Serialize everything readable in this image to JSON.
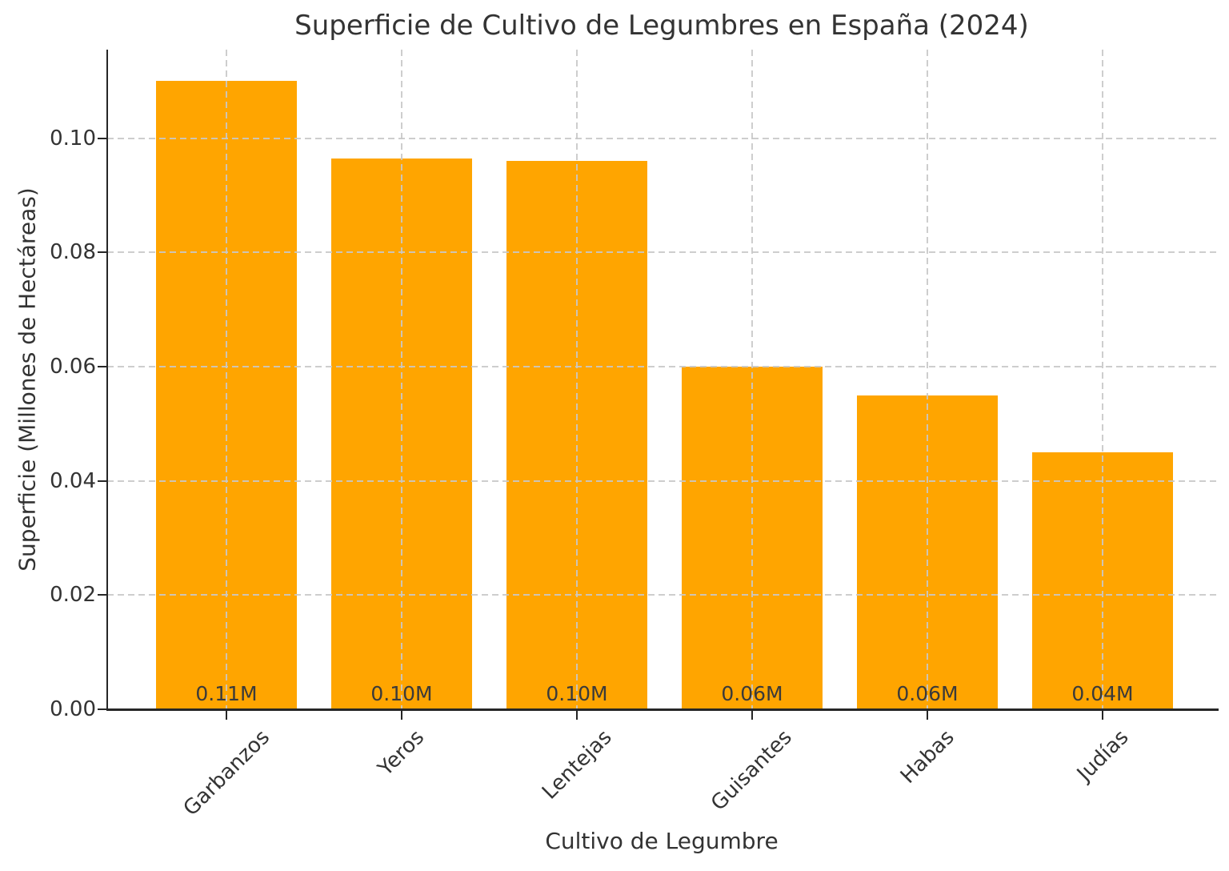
{
  "chart_data": {
    "type": "bar",
    "title": "Superficie de Cultivo de Legumbres en España (2024)",
    "xlabel": "Cultivo de Legumbre",
    "ylabel": "Superficie (Millones de Hectáreas)",
    "categories": [
      "Garbanzos",
      "Yeros",
      "Lentejas",
      "Guisantes",
      "Habas",
      "Judías"
    ],
    "values": [
      0.11,
      0.0965,
      0.096,
      0.06,
      0.055,
      0.045
    ],
    "bar_labels": [
      "0.11M",
      "0.10M",
      "0.10M",
      "0.06M",
      "0.06M",
      "0.04M"
    ],
    "yticks": [
      0.0,
      0.02,
      0.04,
      0.06,
      0.08,
      0.1
    ],
    "ytick_labels": [
      "0.00",
      "0.02",
      "0.04",
      "0.06",
      "0.08",
      "0.10"
    ],
    "ylim": [
      0,
      0.1155
    ],
    "bar_color": "#FFA500",
    "grid": "dashed",
    "grid_color": "#c8c8c8",
    "spine_color": "#262626",
    "text_color": "#333333",
    "legend": null
  }
}
